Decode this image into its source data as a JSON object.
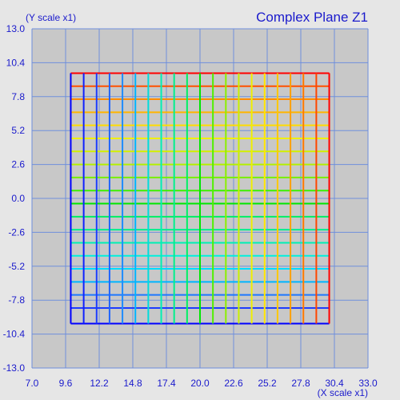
{
  "chart_data": {
    "type": "line",
    "title": "Complex Plane Z1",
    "xlabel": "(X scale x1)",
    "ylabel": "(Y scale x1)",
    "xlim": [
      7.0,
      33.0
    ],
    "ylim": [
      -13.0,
      13.0
    ],
    "x_ticks": [
      "7.0",
      "9.6",
      "12.2",
      "14.8",
      "17.4",
      "20.0",
      "22.6",
      "25.2",
      "27.8",
      "30.4",
      "33.0"
    ],
    "y_ticks": [
      "13.0",
      "10.4",
      "7.8",
      "5.2",
      "2.6",
      "0.0",
      "-2.6",
      "-5.2",
      "-7.8",
      "-10.4",
      "-13.0"
    ],
    "grid": true,
    "colors": {
      "background": "#e6e6e6",
      "plot_area": "#c8c8c8",
      "gridline": "#6f8fdc",
      "text": "#1a1acc"
    },
    "mesh": {
      "x_range": [
        10.0,
        30.0
      ],
      "y_range": [
        -9.6,
        9.6
      ],
      "vertical_lines": [
        {
          "x": 10.0,
          "color": "#0000ff"
        },
        {
          "x": 11.0,
          "color": "#1020ff"
        },
        {
          "x": 12.0,
          "color": "#1a3cff"
        },
        {
          "x": 13.0,
          "color": "#1e64ff"
        },
        {
          "x": 14.0,
          "color": "#1e8cff"
        },
        {
          "x": 15.0,
          "color": "#00b4ff"
        },
        {
          "x": 16.0,
          "color": "#00dcdc"
        },
        {
          "x": 17.0,
          "color": "#00f0b4"
        },
        {
          "x": 18.0,
          "color": "#00f08c"
        },
        {
          "x": 19.0,
          "color": "#00f064"
        },
        {
          "x": 20.0,
          "color": "#00e600"
        },
        {
          "x": 21.0,
          "color": "#50f000"
        },
        {
          "x": 22.0,
          "color": "#8cf000"
        },
        {
          "x": 23.0,
          "color": "#c8f000"
        },
        {
          "x": 24.0,
          "color": "#f0f000"
        },
        {
          "x": 25.0,
          "color": "#ffe600"
        },
        {
          "x": 26.0,
          "color": "#ffc800"
        },
        {
          "x": 27.0,
          "color": "#ffa000"
        },
        {
          "x": 28.0,
          "color": "#ff7800"
        },
        {
          "x": 29.0,
          "color": "#ff4600"
        },
        {
          "x": 30.0,
          "color": "#ff0000"
        }
      ],
      "horizontal_lines": [
        {
          "y": 9.6,
          "color": "#ff0000"
        },
        {
          "y": 8.6,
          "color": "#ff5000"
        },
        {
          "y": 7.6,
          "color": "#ff8c00"
        },
        {
          "y": 6.6,
          "color": "#ffb400"
        },
        {
          "y": 5.6,
          "color": "#ffdc00"
        },
        {
          "y": 4.6,
          "color": "#f0f000"
        },
        {
          "y": 3.6,
          "color": "#d2f000"
        },
        {
          "y": 2.6,
          "color": "#b4f000"
        },
        {
          "y": 1.6,
          "color": "#78f000"
        },
        {
          "y": 0.6,
          "color": "#3cf000"
        },
        {
          "y": -0.4,
          "color": "#00e600"
        },
        {
          "y": -1.4,
          "color": "#00f064"
        },
        {
          "y": -2.4,
          "color": "#00f08c"
        },
        {
          "y": -3.4,
          "color": "#00f0b4"
        },
        {
          "y": -4.4,
          "color": "#00f0dc"
        },
        {
          "y": -5.4,
          "color": "#00dcff"
        },
        {
          "y": -6.4,
          "color": "#00b4ff"
        },
        {
          "y": -7.4,
          "color": "#1e78ff"
        },
        {
          "y": -8.4,
          "color": "#1e3cff"
        },
        {
          "y": -9.6,
          "color": "#0000ff"
        }
      ]
    }
  }
}
